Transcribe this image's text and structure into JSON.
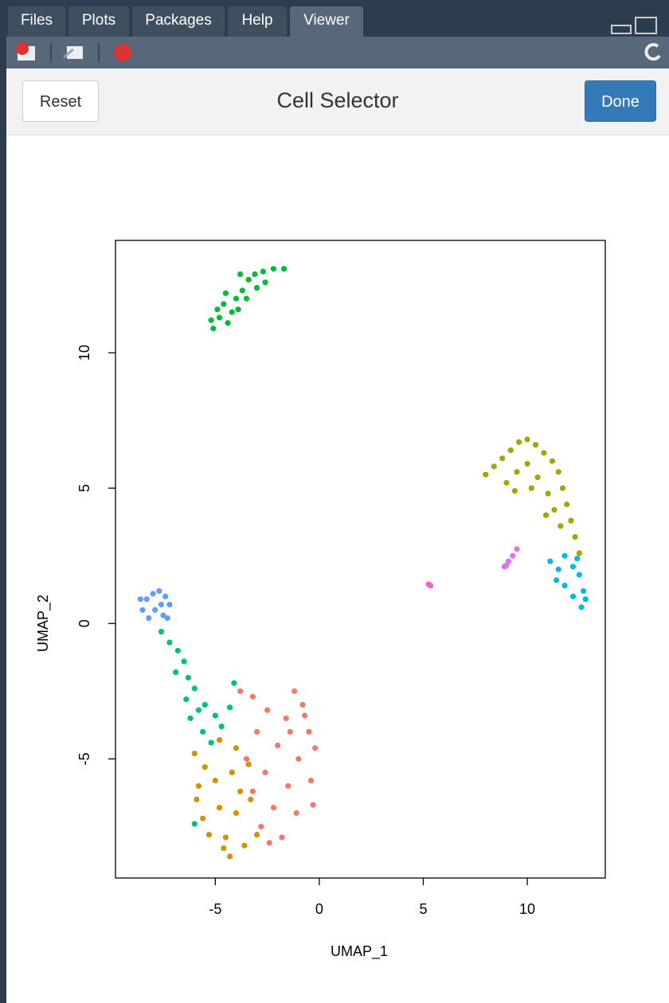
{
  "tabs": [
    "Files",
    "Plots",
    "Packages",
    "Help",
    "Viewer"
  ],
  "gadget": {
    "title": "Cell Selector",
    "left_button": "Reset",
    "right_button": "Done"
  },
  "chart_data": {
    "type": "scatter",
    "xlabel": "UMAP_1",
    "ylabel": "UMAP_2",
    "xlim": [
      -9.8,
      13.75
    ],
    "ylim": [
      -9.4,
      14.15
    ],
    "xticks": [
      -5,
      0,
      5,
      10
    ],
    "yticks": [
      -5,
      0,
      5,
      10
    ],
    "series": [
      {
        "color": "#00BA38",
        "x": [
          -5.1,
          -4.8,
          -4.6,
          -4.2,
          -4.0,
          -3.7,
          -3.4,
          -3.1,
          -2.7,
          -2.2,
          -1.7,
          -4.9,
          -4.4,
          -3.9,
          -3.5,
          -3.0,
          -2.6,
          -5.2,
          -4.5,
          -3.8
        ],
        "y": [
          10.9,
          11.3,
          11.8,
          11.5,
          12.0,
          12.3,
          12.7,
          12.9,
          13.0,
          13.1,
          13.1,
          11.6,
          11.1,
          11.6,
          12.0,
          12.4,
          12.6,
          11.2,
          12.2,
          12.9
        ]
      },
      {
        "color": "#A3A500",
        "x": [
          8.0,
          8.4,
          8.8,
          9.2,
          9.6,
          10.0,
          10.4,
          10.8,
          11.2,
          11.5,
          11.7,
          11.9,
          12.1,
          12.3,
          12.5,
          9.0,
          9.5,
          10.0,
          10.5,
          11.0,
          11.3,
          11.6,
          9.4,
          10.2,
          10.9
        ],
        "y": [
          5.5,
          5.8,
          6.1,
          6.4,
          6.7,
          6.8,
          6.6,
          6.3,
          6.0,
          5.6,
          5.0,
          4.4,
          3.8,
          3.2,
          2.6,
          5.2,
          5.6,
          5.9,
          5.4,
          4.8,
          4.2,
          3.6,
          4.9,
          5.0,
          4.0
        ]
      },
      {
        "color": "#00B9E3",
        "x": [
          11.1,
          11.5,
          11.8,
          12.2,
          12.5,
          12.7,
          12.6,
          12.2,
          11.8,
          11.4,
          12.4,
          12.8
        ],
        "y": [
          2.3,
          2.0,
          2.5,
          2.1,
          1.8,
          1.2,
          0.6,
          1.0,
          1.4,
          1.6,
          2.4,
          0.9
        ]
      },
      {
        "color": "#DB72FB",
        "x": [
          8.9,
          9.1,
          9.3,
          9.5,
          9.0
        ],
        "y": [
          2.1,
          2.3,
          2.5,
          2.75,
          2.15
        ]
      },
      {
        "color": "#FF61C3",
        "x": [
          5.25,
          5.35
        ],
        "y": [
          1.45,
          1.4
        ]
      },
      {
        "color": "#619CFF",
        "x": [
          -8.5,
          -8.3,
          -8.0,
          -7.7,
          -7.4,
          -7.2,
          -7.5,
          -7.9,
          -8.2,
          -7.6,
          -8.6,
          -7.3
        ],
        "y": [
          0.5,
          0.9,
          1.1,
          1.2,
          1.0,
          0.7,
          0.3,
          0.5,
          0.2,
          0.7,
          0.9,
          0.2
        ]
      },
      {
        "color": "#00BF7D",
        "x": [
          -7.6,
          -7.2,
          -6.8,
          -6.5,
          -6.9,
          -6.3,
          -6.0,
          -6.4,
          -5.8,
          -6.2,
          -5.5,
          -5.0,
          -4.7,
          -5.6,
          -5.2,
          -4.1,
          -6.0,
          -4.3
        ],
        "y": [
          -0.3,
          -0.7,
          -1.0,
          -1.4,
          -1.8,
          -2.0,
          -2.4,
          -2.8,
          -3.2,
          -3.5,
          -3.0,
          -3.4,
          -3.8,
          -4.0,
          -4.4,
          -2.2,
          -7.4,
          -3.1
        ]
      },
      {
        "color": "#F8766D",
        "x": [
          -3.8,
          -3.2,
          -1.2,
          -0.8,
          -2.5,
          -1.6,
          -0.5,
          -3.0,
          -2.0,
          -1.0,
          -0.2,
          -3.5,
          -2.6,
          -1.5,
          -0.4,
          -3.2,
          -2.2,
          -1.1,
          -0.3,
          -2.8,
          -1.8,
          -2.4,
          -1.4,
          -0.7
        ],
        "y": [
          -2.5,
          -2.7,
          -2.5,
          -3.0,
          -3.2,
          -3.5,
          -4.0,
          -4.0,
          -4.5,
          -5.0,
          -4.6,
          -5.0,
          -5.5,
          -6.0,
          -5.8,
          -6.2,
          -6.8,
          -7.0,
          -6.7,
          -7.5,
          -7.9,
          -8.1,
          -4.0,
          -3.4
        ]
      },
      {
        "color": "#D39200",
        "x": [
          -6.0,
          -5.5,
          -4.8,
          -4.0,
          -3.4,
          -5.8,
          -5.0,
          -4.2,
          -3.3,
          -5.6,
          -4.8,
          -4.0,
          -3.0,
          -5.3,
          -4.5,
          -3.6,
          -4.3,
          -5.9,
          -3.8,
          -4.6
        ],
        "y": [
          -4.8,
          -5.3,
          -4.3,
          -4.6,
          -5.2,
          -6.0,
          -5.8,
          -5.5,
          -6.5,
          -7.2,
          -6.8,
          -7.0,
          -7.8,
          -7.8,
          -7.9,
          -8.2,
          -8.6,
          -6.5,
          -6.2,
          -8.3
        ]
      }
    ]
  }
}
